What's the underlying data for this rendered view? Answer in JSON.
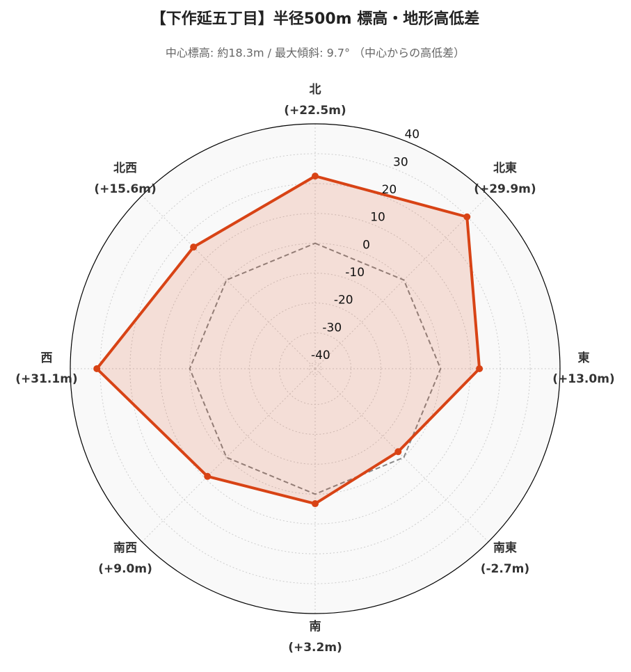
{
  "chart_data": {
    "type": "radar",
    "title": "【下作延五丁目】半径500m 標高・地形高低差",
    "subtitle": "中心標高: 約18.3m / 最大傾斜: 9.7° （中心からの高低差）",
    "categories": [
      "北",
      "北東",
      "東",
      "南東",
      "南",
      "南西",
      "西",
      "北西"
    ],
    "series": [
      {
        "name": "高低差",
        "color": "#d84315",
        "values": [
          22.5,
          29.9,
          13.0,
          -2.7,
          3.2,
          9.0,
          31.1,
          15.6
        ],
        "value_labels": [
          "(+22.5m)",
          "(+29.9m)",
          "(+13.0m)",
          "(-2.7m)",
          "(+3.2m)",
          "(+9.0m)",
          "(+31.1m)",
          "(+15.6m)"
        ]
      }
    ],
    "reference_value": 0,
    "ylim": [
      -42,
      40
    ],
    "yticks": [
      -40,
      -30,
      -20,
      -10,
      0,
      10,
      20,
      30,
      40
    ],
    "grid": true
  }
}
